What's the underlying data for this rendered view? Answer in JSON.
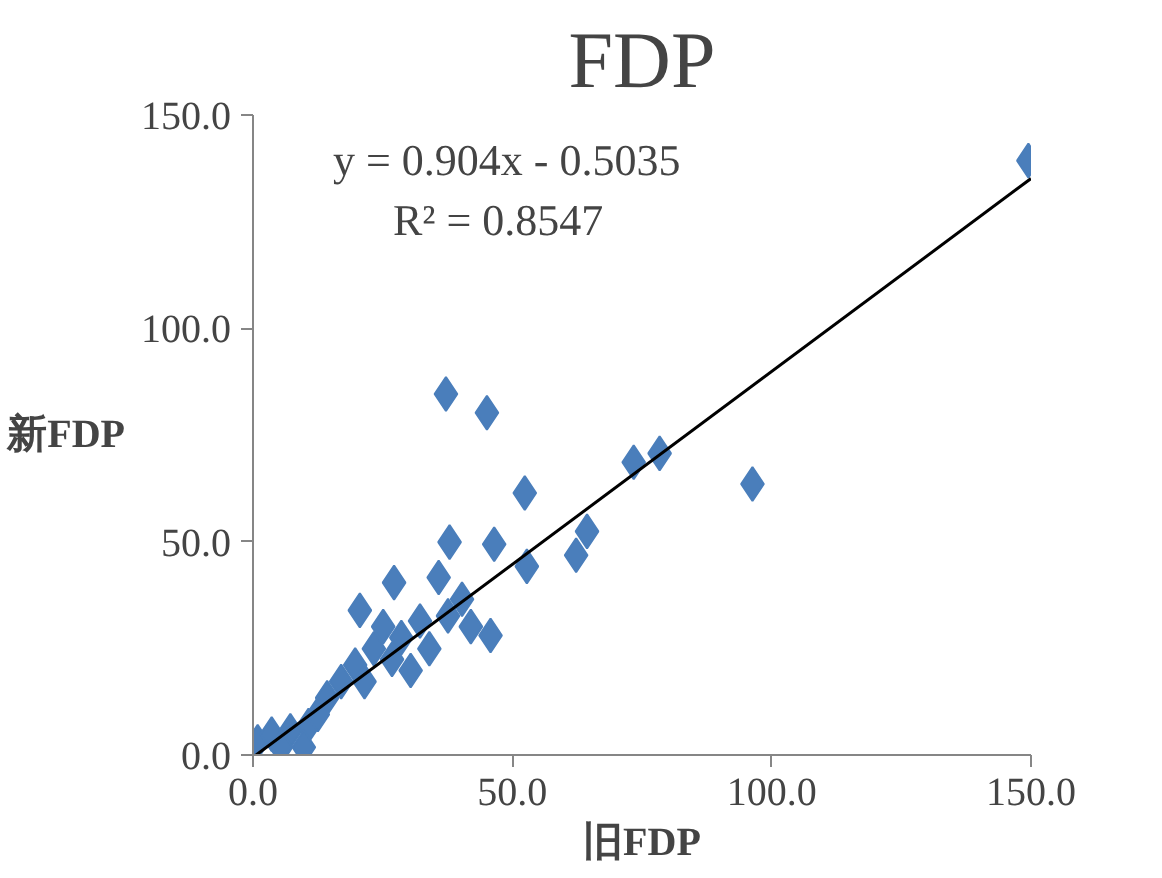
{
  "chart_data": {
    "type": "scatter",
    "title": "FDP",
    "xlabel": "旧FDP",
    "ylabel": "新FDP",
    "xlim": [
      0,
      150
    ],
    "ylim": [
      0,
      150
    ],
    "xticks": [
      {
        "value": 0,
        "label": "0.0"
      },
      {
        "value": 50,
        "label": "50.0"
      },
      {
        "value": 100,
        "label": "100.0"
      },
      {
        "value": 150,
        "label": "150.0"
      }
    ],
    "yticks": [
      {
        "value": 0,
        "label": "0.0"
      },
      {
        "value": 50,
        "label": "50.0"
      },
      {
        "value": 100,
        "label": "100.0"
      },
      {
        "value": 150,
        "label": "150.0"
      }
    ],
    "grid": false,
    "marker": "diamond",
    "series": [
      {
        "color": "#4a7ebb",
        "x": [
          149.5,
          37.2,
          45.1,
          96.3,
          73.4,
          78.4,
          52.4,
          64.4,
          62.3,
          52.8,
          37.9,
          46.5,
          20.6,
          27.2,
          45.8,
          35.8,
          40.3,
          0.9,
          3.6,
          7.2,
          10.7,
          9.8,
          14.3,
          17,
          19.7,
          23.3,
          25.1,
          28.6,
          30.4,
          32.2,
          34,
          37.6,
          42,
          12.5,
          21.5,
          26.8,
          5.4
        ],
        "values": [
          139.3,
          84.6,
          80.2,
          63.5,
          68.6,
          70.7,
          61.4,
          52.4,
          46.8,
          44.2,
          49.9,
          49.4,
          33.9,
          40.4,
          28,
          41.6,
          36.5,
          3.1,
          4.9,
          5.7,
          6.9,
          1.8,
          13.4,
          17.2,
          21.1,
          24.9,
          30.1,
          27.5,
          19.8,
          31.4,
          24.9,
          32.6,
          30.1,
          9.5,
          17.2,
          22.4,
          1.8
        ]
      },
      {
        "type": "line",
        "marker": "none",
        "color": "#000000",
        "x": [
          0.6,
          150
        ],
        "values": [
          0.0,
          135.1
        ]
      }
    ],
    "annotations": [
      "y = 0.904x - 0.5035",
      "R² = 0.8547"
    ]
  }
}
